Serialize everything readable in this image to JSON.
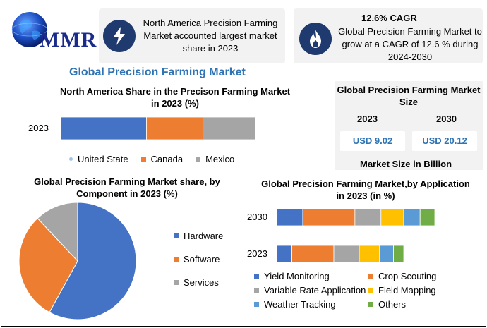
{
  "logo": {
    "text": "MMR"
  },
  "card_left": {
    "icon": "lightning-icon",
    "text": "North America Precision Farming Market accounted largest market share in 2023"
  },
  "card_right": {
    "icon": "flame-icon",
    "heading": "12.6% CAGR",
    "text": "Global Precision Farming Market to grow at a CAGR of 12.6 % during 2024-2030"
  },
  "main_title": "Global Precision Farming Market",
  "size_panel": {
    "title": "Global Precision Farming Market Size",
    "year_a": "2023",
    "year_b": "2030",
    "value_a": "USD 9.02",
    "value_b": "USD 20.12",
    "footer": "Market Size in Billion"
  },
  "colors": {
    "blue": "#4472c4",
    "orange": "#ed7d31",
    "gray": "#a5a5a5",
    "yellow": "#ffc000",
    "lightblue": "#5b9bd5",
    "green": "#70ad47",
    "accent": "#2e74b5",
    "navy": "#1f3a6e"
  },
  "chart_data": [
    {
      "type": "bar",
      "orientation": "horizontal",
      "stacked": true,
      "title": "North America Share in the Precison Farming Market in 2023 (%)",
      "categories": [
        "2023"
      ],
      "series": [
        {
          "name": "United State",
          "values": [
            44
          ]
        },
        {
          "name": "Canada",
          "values": [
            29
          ]
        },
        {
          "name": "Mexico",
          "values": [
            27
          ]
        }
      ],
      "legend": "bottom"
    },
    {
      "type": "pie",
      "title": "Global Precision Farming Market share, by Component in 2023  (%)",
      "labels": [
        "Hardware",
        "Software",
        "Services"
      ],
      "values": [
        58,
        30,
        12
      ],
      "legend": "right"
    },
    {
      "type": "bar",
      "orientation": "horizontal",
      "stacked": true,
      "title": "Global Precision Farming Market,by Application in 2023 (in %)",
      "categories": [
        "2030",
        "2023"
      ],
      "series": [
        {
          "name": "Yield Monitoring",
          "values": [
            16,
            12
          ]
        },
        {
          "name": "Crop Scouting",
          "values": [
            32,
            33
          ]
        },
        {
          "name": "Variable Rate Application",
          "values": [
            16,
            20
          ]
        },
        {
          "name": "Field Mapping",
          "values": [
            14,
            16
          ]
        },
        {
          "name": "Weather Tracking",
          "values": [
            10,
            11
          ]
        },
        {
          "name": "Others",
          "values": [
            9,
            8
          ]
        }
      ],
      "legend": "bottom"
    }
  ]
}
